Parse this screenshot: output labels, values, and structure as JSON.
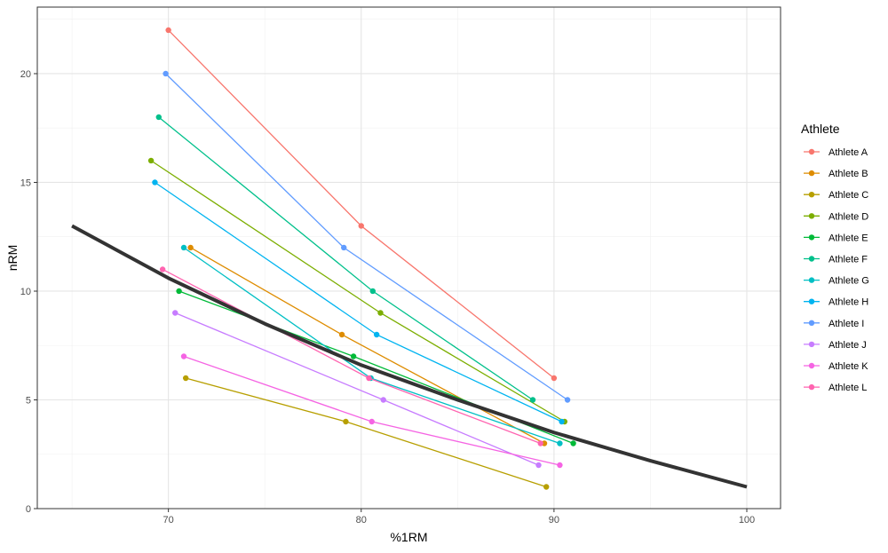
{
  "chart_data": {
    "type": "line",
    "title": "",
    "xlabel": "%1RM",
    "ylabel": "nRM",
    "xlim": [
      63.2,
      101.75
    ],
    "ylim": [
      0,
      23.06
    ],
    "xticks": [
      70,
      80,
      90,
      100
    ],
    "yticks": [
      0,
      5,
      10,
      15,
      20
    ],
    "grid": true,
    "legend": {
      "title": "Athlete",
      "placement": "right"
    },
    "series": [
      {
        "name": "Athlete A",
        "color": "#F8766D",
        "points": [
          [
            70.0,
            22
          ],
          [
            80.0,
            13
          ],
          [
            90.0,
            6
          ]
        ]
      },
      {
        "name": "Athlete B",
        "color": "#DE8C00",
        "points": [
          [
            71.15,
            12
          ],
          [
            79.0,
            8
          ],
          [
            89.5,
            3
          ]
        ]
      },
      {
        "name": "Athlete C",
        "color": "#B79F00",
        "points": [
          [
            70.9,
            6
          ],
          [
            79.2,
            4
          ],
          [
            89.6,
            1
          ]
        ]
      },
      {
        "name": "Athlete D",
        "color": "#7CAE00",
        "points": [
          [
            69.1,
            16
          ],
          [
            81.0,
            9
          ],
          [
            90.55,
            4
          ]
        ]
      },
      {
        "name": "Athlete E",
        "color": "#00BA38",
        "points": [
          [
            70.55,
            10
          ],
          [
            79.6,
            7
          ],
          [
            91.0,
            3
          ]
        ]
      },
      {
        "name": "Athlete F",
        "color": "#00C08B",
        "points": [
          [
            69.5,
            18
          ],
          [
            80.6,
            10
          ],
          [
            88.9,
            5
          ]
        ]
      },
      {
        "name": "Athlete G",
        "color": "#00BFC4",
        "points": [
          [
            70.8,
            12
          ],
          [
            80.5,
            6
          ],
          [
            90.3,
            3
          ]
        ]
      },
      {
        "name": "Athlete H",
        "color": "#00B4F0",
        "points": [
          [
            69.3,
            15
          ],
          [
            80.8,
            8
          ],
          [
            90.4,
            4
          ]
        ]
      },
      {
        "name": "Athlete I",
        "color": "#619CFF",
        "points": [
          [
            69.86,
            20
          ],
          [
            79.1,
            12
          ],
          [
            90.7,
            5
          ]
        ]
      },
      {
        "name": "Athlete J",
        "color": "#C77CFF",
        "points": [
          [
            70.35,
            9
          ],
          [
            81.15,
            5
          ],
          [
            89.2,
            2
          ]
        ]
      },
      {
        "name": "Athlete K",
        "color": "#F564E3",
        "points": [
          [
            70.8,
            7
          ],
          [
            80.55,
            4
          ],
          [
            90.3,
            2
          ]
        ]
      },
      {
        "name": "Athlete L",
        "color": "#FF64B0",
        "points": [
          [
            69.7,
            11
          ],
          [
            80.4,
            6
          ],
          [
            89.3,
            3
          ]
        ]
      }
    ],
    "fit_curve": {
      "color": "#333333",
      "points": [
        [
          65,
          13
        ],
        [
          70,
          10.6
        ],
        [
          75,
          8.5
        ],
        [
          80,
          6.6
        ],
        [
          85,
          5.0
        ],
        [
          90,
          3.5
        ],
        [
          95,
          2.2
        ],
        [
          100,
          1
        ]
      ]
    }
  }
}
